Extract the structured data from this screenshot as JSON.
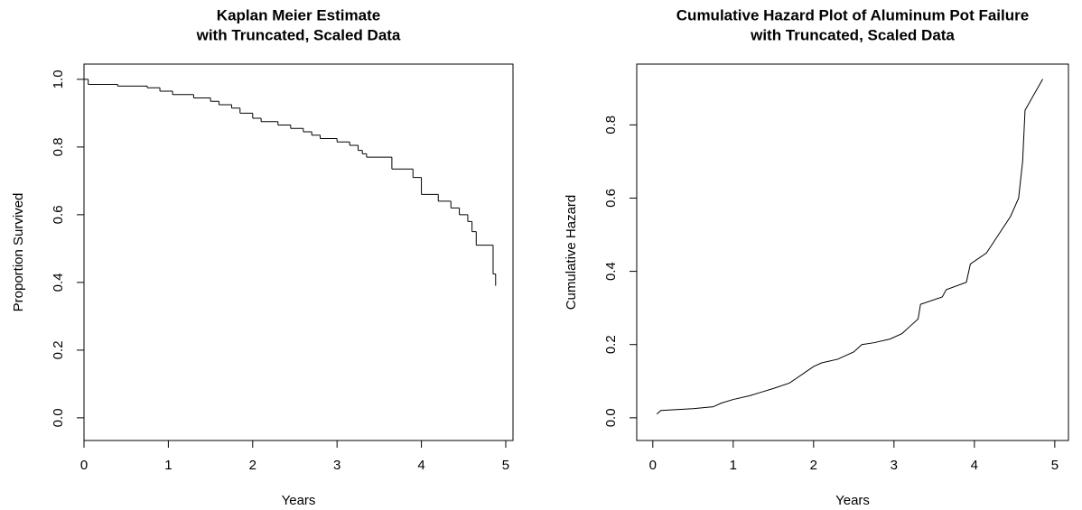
{
  "chart_data": [
    {
      "type": "step",
      "title": [
        "Kaplan Meier Estimate",
        "with Truncated, Scaled Data"
      ],
      "x_label": "Years",
      "y_label": "Proportion Survived",
      "x": [
        0,
        0.05,
        0.4,
        0.75,
        0.9,
        1.05,
        1.3,
        1.5,
        1.6,
        1.75,
        1.85,
        2.0,
        2.1,
        2.3,
        2.45,
        2.6,
        2.7,
        2.8,
        3.0,
        3.15,
        3.25,
        3.3,
        3.35,
        3.65,
        3.9,
        4.0,
        4.2,
        4.35,
        4.45,
        4.55,
        4.6,
        4.65,
        4.85,
        4.88
      ],
      "values": [
        1.0,
        0.985,
        0.98,
        0.975,
        0.965,
        0.955,
        0.945,
        0.935,
        0.925,
        0.915,
        0.9,
        0.885,
        0.875,
        0.865,
        0.855,
        0.845,
        0.835,
        0.825,
        0.815,
        0.805,
        0.79,
        0.78,
        0.77,
        0.735,
        0.71,
        0.66,
        0.64,
        0.62,
        0.6,
        0.58,
        0.55,
        0.51,
        0.425,
        0.39
      ],
      "color": "#000000",
      "xlim": [
        0,
        5.086
      ],
      "ylim": [
        -0.067,
        1.045
      ],
      "xticks": [
        0,
        1,
        2,
        3,
        4,
        5
      ],
      "yticks": [
        {
          "value": 0,
          "label": "0.0"
        },
        0.2,
        0.4,
        0.6,
        0.8,
        {
          "value": 1,
          "label": "1.0"
        }
      ]
    },
    {
      "type": "line",
      "title": [
        "Cumulative Hazard Plot of Aluminum Pot Failure",
        "with Truncated, Scaled Data"
      ],
      "x_label": "Years",
      "y_label": "Cumulative Hazard",
      "x": [
        0.05,
        0.1,
        0.5,
        0.75,
        0.85,
        1.0,
        1.2,
        1.35,
        1.5,
        1.7,
        1.8,
        2.0,
        2.1,
        2.3,
        2.5,
        2.6,
        2.75,
        2.95,
        3.1,
        3.2,
        3.3,
        3.33,
        3.6,
        3.65,
        3.9,
        3.95,
        4.15,
        4.3,
        4.45,
        4.55,
        4.6,
        4.63,
        4.85
      ],
      "values": [
        0.01,
        0.02,
        0.025,
        0.03,
        0.04,
        0.05,
        0.06,
        0.07,
        0.08,
        0.095,
        0.11,
        0.14,
        0.15,
        0.16,
        0.18,
        0.2,
        0.205,
        0.215,
        0.23,
        0.25,
        0.27,
        0.31,
        0.33,
        0.35,
        0.37,
        0.42,
        0.45,
        0.5,
        0.55,
        0.6,
        0.7,
        0.84,
        0.925
      ],
      "color": "#000000",
      "xlim": [
        -0.2,
        5.17
      ],
      "ylim": [
        -0.062,
        0.966
      ],
      "xticks": [
        0,
        1,
        2,
        3,
        4,
        5
      ],
      "yticks": [
        {
          "value": 0,
          "label": "0.0"
        },
        0.2,
        0.4,
        0.6,
        0.8
      ]
    }
  ]
}
